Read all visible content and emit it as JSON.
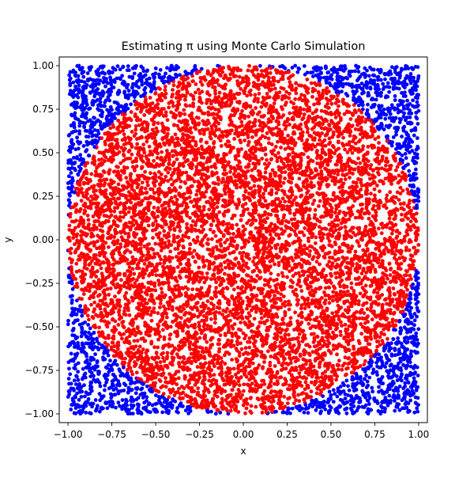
{
  "chart_data": {
    "type": "scatter",
    "title": "Estimating π using Monte Carlo Simulation",
    "xlabel": "x",
    "ylabel": "y",
    "xlim": [
      -1.05,
      1.05
    ],
    "ylim": [
      -1.05,
      1.05
    ],
    "xticks": [
      -1.0,
      -0.75,
      -0.5,
      -0.25,
      0.0,
      0.25,
      0.5,
      0.75,
      1.0
    ],
    "yticks": [
      -1.0,
      -0.75,
      -0.5,
      -0.25,
      0.0,
      0.25,
      0.5,
      0.75,
      1.0
    ],
    "xtick_labels": [
      "−1.00",
      "−0.75",
      "−0.50",
      "−0.25",
      "0.00",
      "0.25",
      "0.50",
      "0.75",
      "1.00"
    ],
    "ytick_labels": [
      "−1.00",
      "−0.75",
      "−0.50",
      "−0.25",
      "0.00",
      "0.25",
      "0.50",
      "0.75",
      "1.00"
    ],
    "grid": false,
    "legend": "none",
    "sample_domain": {
      "x": [
        -1,
        1
      ],
      "y": [
        -1,
        1
      ]
    },
    "circle_radius": 1.0,
    "series": [
      {
        "region": "inside unit circle (x² + y² ≤ 1)",
        "color": "#ff0000"
      },
      {
        "region": "outside unit circle (x² + y² > 1)",
        "color": "#0000ff"
      }
    ]
  }
}
